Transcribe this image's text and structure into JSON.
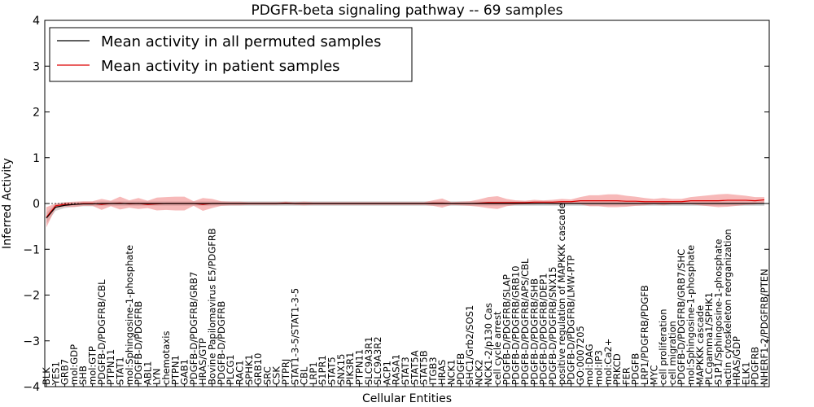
{
  "chart_data": {
    "type": "line",
    "title": "PDGFR-beta signaling pathway -- 69 samples",
    "xlabel": "Cellular Entities",
    "ylabel": "Inferred Activity",
    "ylim": [
      -4,
      4
    ],
    "yticks": [
      -4,
      -3,
      -2,
      -1,
      0,
      1,
      2,
      3,
      4
    ],
    "legend": "top-left",
    "categories": [
      "BLK",
      "YES1",
      "GRB7",
      "mol:GDP",
      "SHB",
      "mol:GTP",
      "PDGFB-D/PDGFRB/CBL",
      "PTPN11",
      "STAT1",
      "mol:Sphingosine-1-phosphate",
      "PDGFB-D/PDGFRB",
      "ABL1",
      "LYN",
      "chemotaxis",
      "PTPN1",
      "GAB1",
      "PDGFB-D/PDGFRB/GRB7",
      "HRAS/GTP",
      "Bovine Papilomavirus E5/PDGFRB",
      "PDGFB-D/PDGFRB",
      "PLCG1",
      "RAC1",
      "SPHK1",
      "GRB10",
      "SRC",
      "CSK",
      "PTPRJ",
      "STAT1-3-5/STAT1-3-5",
      "CBL",
      "LRP1",
      "S1PR1",
      "STAT5",
      "SNX15",
      "PIK3R1",
      "PTPN11",
      "SLC9A3R1",
      "SLC9A3R2",
      "ACP1",
      "RASA1",
      "STAT3",
      "STAT5A",
      "STAT5B",
      "ITGB3",
      "HRAS",
      "NCK1",
      "PDGFB",
      "SHC1/Grb2/SOS1",
      "NCK2",
      "NCK1-2/p130 Cas",
      "cell cycle arrest",
      "PDGFB-D/PDGFRB/SLAP",
      "PDGFB-D/PDGFRB/GRB10",
      "PDGFB-D/PDGFRB/APS/CBL",
      "PDGFB-D/PDGFRB/SHB",
      "PDGFB-D/PDGFRB/DEP1",
      "PDGFB-D/PDGFRB/SNX15",
      "positive regulation of MAPKKK cascade",
      "PDGFB-D/PDGFRB/LMW-PTP",
      "GO:0007205",
      "mol:DAG",
      "mol:IP3",
      "mol:Ca2+",
      "PRKCD",
      "FER",
      "PDGFB",
      "LRP1/PDGFRB/PDGFB",
      "MYC",
      "cell proliferation",
      "cell migration",
      "PDGFB-D/PDGFRB/GRB7/SHC",
      "mol:Sphingosine-1-phosphate",
      "MAPKKK cascade",
      "PLCgamma1/SPHK1",
      "S1P1/Sphingosine-1-phosphate",
      "actin cytoskeleton reorganization",
      "HRAS/GDP",
      "ELK1",
      "PDGFRB",
      "NHERF1-2/PDGFRB/PTEN"
    ],
    "series": [
      {
        "name": "Mean activity in all permuted samples",
        "color": "#000000",
        "band_color": "#888888",
        "values": [
          -0.32,
          -0.08,
          -0.04,
          -0.02,
          -0.01,
          -0.01,
          0,
          0,
          0,
          0,
          0,
          0,
          0,
          0,
          0,
          0,
          0,
          0,
          0,
          0,
          0,
          0,
          0,
          0,
          0,
          0,
          0,
          0,
          0,
          0,
          0,
          0,
          0,
          0,
          0,
          0,
          0,
          0,
          0,
          0,
          0,
          0,
          0,
          0,
          0,
          0,
          0,
          0,
          0,
          0,
          0,
          0,
          0,
          0,
          0,
          0,
          0,
          0,
          0,
          0,
          0,
          0,
          0,
          0,
          0,
          0,
          0,
          0,
          0,
          0,
          0,
          0,
          0,
          0,
          0,
          0,
          0,
          0,
          0
        ],
        "spread": [
          0.12,
          0.08,
          0.06,
          0.05,
          0.05,
          0.05,
          0.05,
          0.05,
          0.05,
          0.05,
          0.05,
          0.05,
          0.05,
          0.05,
          0.05,
          0.05,
          0.05,
          0.05,
          0.05,
          0.05,
          0.05,
          0.05,
          0.05,
          0.05,
          0.05,
          0.05,
          0.05,
          0.05,
          0.05,
          0.05,
          0.05,
          0.05,
          0.05,
          0.05,
          0.05,
          0.05,
          0.05,
          0.05,
          0.05,
          0.05,
          0.05,
          0.05,
          0.05,
          0.05,
          0.05,
          0.05,
          0.05,
          0.05,
          0.05,
          0.05,
          0.05,
          0.05,
          0.05,
          0.05,
          0.05,
          0.05,
          0.05,
          0.05,
          0.05,
          0.05,
          0.05,
          0.05,
          0.05,
          0.05,
          0.05,
          0.05,
          0.05,
          0.05,
          0.05,
          0.05,
          0.05,
          0.05,
          0.05,
          0.05,
          0.05,
          0.05,
          0.05,
          0.05,
          0.05
        ]
      },
      {
        "name": "Mean activity in patient samples",
        "color": "#dd0000",
        "band_color": "#f08080",
        "values": [
          -0.3,
          -0.05,
          -0.02,
          -0.02,
          0,
          0,
          -0.02,
          0,
          0.01,
          -0.01,
          0,
          -0.02,
          -0.01,
          0,
          0,
          0,
          0,
          -0.02,
          0,
          0,
          0,
          0,
          0,
          0,
          0,
          0,
          0.01,
          0,
          0,
          0,
          0,
          0,
          0,
          0,
          0,
          0,
          0,
          0,
          0,
          0,
          0,
          0,
          0.01,
          0.01,
          0,
          0,
          0,
          0.01,
          0.02,
          0.02,
          0.02,
          0.02,
          0.02,
          0.03,
          0.03,
          0.03,
          0.04,
          0.04,
          0.06,
          0.06,
          0.06,
          0.06,
          0.06,
          0.05,
          0.05,
          0.04,
          0.04,
          0.04,
          0.04,
          0.04,
          0.06,
          0.06,
          0.06,
          0.06,
          0.07,
          0.07,
          0.07,
          0.06,
          0.08
        ],
        "spread": [
          0.22,
          0.05,
          0.05,
          0.06,
          0.05,
          0.05,
          0.12,
          0.06,
          0.14,
          0.08,
          0.12,
          0.08,
          0.14,
          0.14,
          0.15,
          0.15,
          0.05,
          0.14,
          0.1,
          0.05,
          0.04,
          0.04,
          0.03,
          0.03,
          0.03,
          0.03,
          0.03,
          0.03,
          0.04,
          0.03,
          0.03,
          0.03,
          0.03,
          0.03,
          0.03,
          0.03,
          0.03,
          0.03,
          0.03,
          0.03,
          0.03,
          0.03,
          0.06,
          0.1,
          0.03,
          0.04,
          0.05,
          0.08,
          0.12,
          0.14,
          0.08,
          0.05,
          0.04,
          0.05,
          0.04,
          0.05,
          0.06,
          0.05,
          0.08,
          0.12,
          0.12,
          0.14,
          0.14,
          0.12,
          0.1,
          0.08,
          0.06,
          0.08,
          0.06,
          0.06,
          0.08,
          0.1,
          0.12,
          0.14,
          0.14,
          0.12,
          0.1,
          0.08,
          0.06
        ]
      }
    ]
  }
}
